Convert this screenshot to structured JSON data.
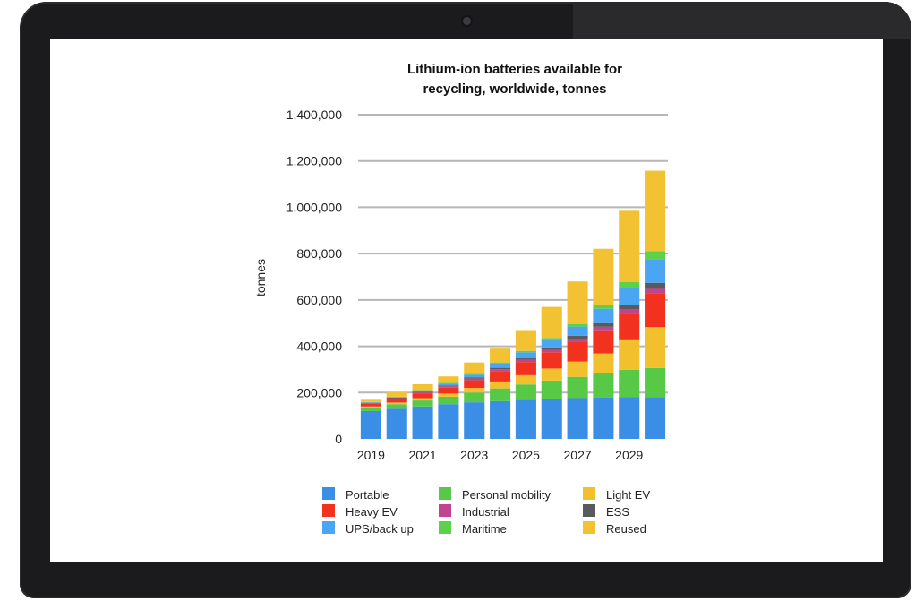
{
  "chart_data": {
    "type": "bar",
    "stacked": true,
    "title_lines": [
      "Lithium-ion batteries available for",
      "recycling, worldwide, tonnes"
    ],
    "ylabel": "tonnes",
    "ylim": [
      0,
      1400000
    ],
    "yticks": [
      0,
      200000,
      400000,
      600000,
      800000,
      1000000,
      1200000,
      1400000
    ],
    "ytick_labels": [
      "0",
      "200,000",
      "400,000",
      "600,000",
      "800,000",
      "1,000,000",
      "1,200,000",
      "1,400,000"
    ],
    "grid": true,
    "legend_placement": "bottom",
    "categories": [
      "2019",
      "2020",
      "2021",
      "2022",
      "2023",
      "2024",
      "2025",
      "2026",
      "2027",
      "2028",
      "2029",
      "2030"
    ],
    "xtick_labels": [
      "2019",
      "",
      "2021",
      "",
      "2023",
      "",
      "2025",
      "",
      "2027",
      "",
      "2029",
      ""
    ],
    "series": [
      {
        "name": "Portable",
        "color": "#3a8ee6",
        "values": [
          120000,
          130000,
          140000,
          150000,
          158000,
          163000,
          168000,
          172000,
          176000,
          178000,
          180000,
          181000
        ]
      },
      {
        "name": "Personal mobility",
        "color": "#57c947",
        "values": [
          15000,
          20000,
          26000,
          32000,
          42000,
          55000,
          67000,
          80000,
          92000,
          105000,
          118000,
          125000
        ]
      },
      {
        "name": "Light EV",
        "color": "#f2c02d",
        "values": [
          5000,
          7000,
          10000,
          14000,
          20000,
          30000,
          40000,
          52000,
          66000,
          86000,
          128000,
          177000
        ]
      },
      {
        "name": "Heavy EV",
        "color": "#f2321e",
        "values": [
          12000,
          15000,
          20000,
          25000,
          33000,
          45000,
          57000,
          70000,
          86000,
          100000,
          115000,
          145000
        ]
      },
      {
        "name": "Industrial",
        "color": "#c2448f",
        "values": [
          3000,
          4000,
          5000,
          6000,
          7000,
          8000,
          9000,
          11000,
          13000,
          15000,
          17000,
          20000
        ]
      },
      {
        "name": "ESS",
        "color": "#5a5a5e",
        "values": [
          1000,
          2000,
          3000,
          4000,
          5000,
          6000,
          7000,
          10000,
          12000,
          16000,
          20000,
          26000
        ]
      },
      {
        "name": "UPS/back up",
        "color": "#4aa6f2",
        "values": [
          2000,
          3000,
          5000,
          8000,
          12000,
          18000,
          26000,
          33000,
          40000,
          62000,
          75000,
          102000
        ]
      },
      {
        "name": "Maritime",
        "color": "#5dd14a",
        "values": [
          1000,
          1000,
          2000,
          3000,
          4000,
          5000,
          6000,
          8000,
          10000,
          15000,
          25000,
          35000
        ]
      },
      {
        "name": "Reused",
        "color": "#f3c232",
        "values": [
          10000,
          20000,
          25000,
          28000,
          49000,
          60000,
          90000,
          134000,
          185000,
          244000,
          307000,
          347000
        ]
      }
    ],
    "legend_order": [
      "Portable",
      "Personal mobility",
      "Light EV",
      "Heavy EV",
      "Industrial",
      "ESS",
      "UPS/back up",
      "Maritime",
      "Reused"
    ]
  }
}
